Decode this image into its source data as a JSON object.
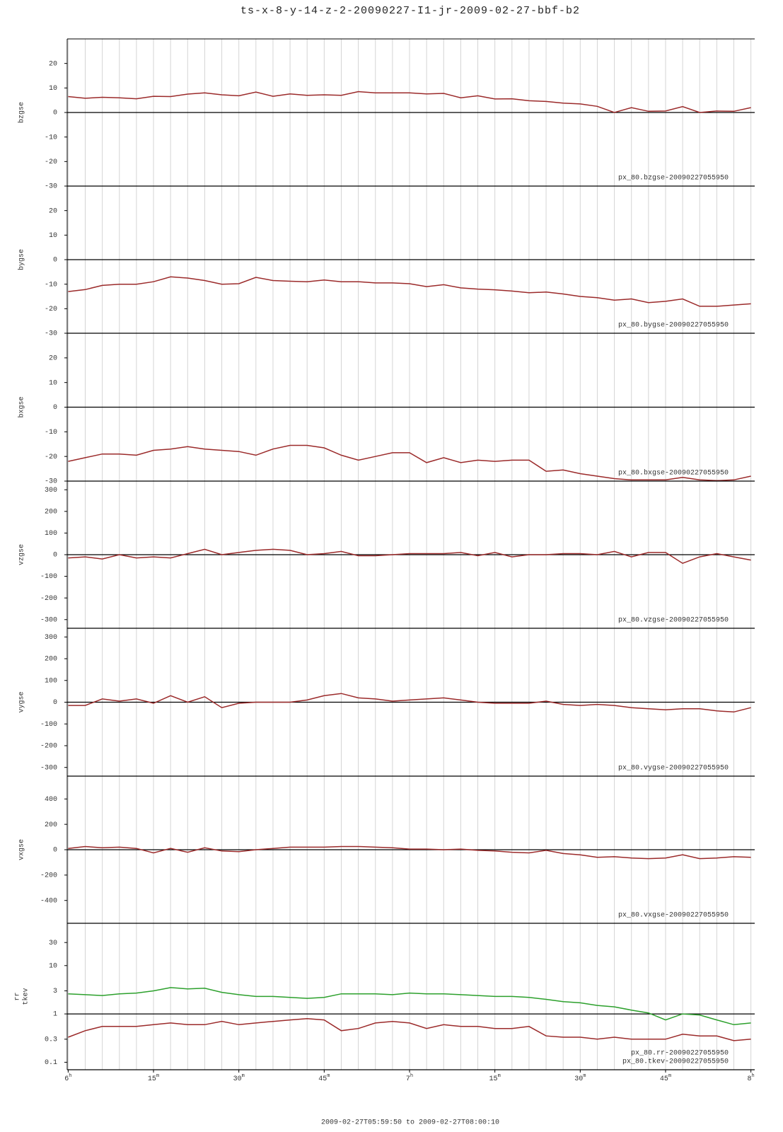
{
  "title": "ts-x-8-y-14-z-2-20090227-I1-jr-2009-02-27-bbf-b2",
  "time_range": "2009-02-27T05:59:50 to 2009-02-27T08:00:10",
  "x_axis": {
    "xlim": [
      -0.17,
      120.17
    ],
    "grid_step": 3,
    "xticks": [
      {
        "value": 0,
        "label": "6h"
      },
      {
        "value": 15,
        "label": "15m"
      },
      {
        "value": 30,
        "label": "30m"
      },
      {
        "value": 45,
        "label": "45m"
      },
      {
        "value": 60,
        "label": "7h"
      },
      {
        "value": 75,
        "label": "15m"
      },
      {
        "value": 90,
        "label": "30m"
      },
      {
        "value": 105,
        "label": "45m"
      },
      {
        "value": 120,
        "label": "8h"
      }
    ]
  },
  "chart_data": [
    {
      "type": "line",
      "ylabel": [
        "bzgse"
      ],
      "ylim": [
        -30,
        30
      ],
      "yticks": [
        -30,
        -20,
        -10,
        0,
        10,
        20
      ],
      "hline": 0,
      "x": [
        0,
        3,
        6,
        9,
        12,
        15,
        18,
        21,
        24,
        27,
        30,
        33,
        36,
        39,
        42,
        45,
        48,
        51,
        54,
        57,
        60,
        63,
        66,
        69,
        72,
        75,
        78,
        81,
        84,
        87,
        90,
        93,
        96,
        99,
        102,
        105,
        108,
        111,
        114,
        117,
        120
      ],
      "series": [
        {
          "name": "px_80.bzgse-20090227055950",
          "color": "#9b2a2a",
          "values": [
            6.5,
            5.8,
            6.2,
            6,
            5.6,
            6.6,
            6.5,
            7.5,
            8,
            7.2,
            6.8,
            8.3,
            6.6,
            7.6,
            7,
            7.2,
            7,
            8.5,
            8,
            8,
            8,
            7.6,
            7.8,
            6,
            6.8,
            5.5,
            5.6,
            4.8,
            4.5,
            3.8,
            3.5,
            2.5,
            0,
            2,
            0.5,
            0.6,
            2.4,
            0,
            0.6,
            0.5,
            2
          ]
        }
      ]
    },
    {
      "type": "line",
      "ylabel": [
        "bygse"
      ],
      "ylim": [
        -30,
        30
      ],
      "yticks": [
        -30,
        -20,
        -10,
        0,
        10,
        20
      ],
      "hline": 0,
      "x": [
        0,
        3,
        6,
        9,
        12,
        15,
        18,
        21,
        24,
        27,
        30,
        33,
        36,
        39,
        42,
        45,
        48,
        51,
        54,
        57,
        60,
        63,
        66,
        69,
        72,
        75,
        78,
        81,
        84,
        87,
        90,
        93,
        96,
        99,
        102,
        105,
        108,
        111,
        114,
        117,
        120
      ],
      "series": [
        {
          "name": "px_80.bygse-20090227055950",
          "color": "#9b2a2a",
          "values": [
            -13,
            -12.2,
            -10.5,
            -10,
            -10,
            -9,
            -7,
            -7.5,
            -8.5,
            -10,
            -9.8,
            -7.2,
            -8.5,
            -8.8,
            -9,
            -8.3,
            -9,
            -9,
            -9.5,
            -9.5,
            -9.8,
            -11,
            -10.2,
            -11.5,
            -12,
            -12.3,
            -12.8,
            -13.5,
            -13.2,
            -14,
            -15,
            -15.5,
            -16.5,
            -16,
            -17.5,
            -17,
            -16,
            -19,
            -19,
            -18.5,
            -18
          ]
        }
      ]
    },
    {
      "type": "line",
      "ylabel": [
        "bxgse"
      ],
      "ylim": [
        -30,
        30
      ],
      "yticks": [
        -30,
        -20,
        -10,
        0,
        10,
        20
      ],
      "hline": 0,
      "x": [
        0,
        3,
        6,
        9,
        12,
        15,
        18,
        21,
        24,
        27,
        30,
        33,
        36,
        39,
        42,
        45,
        48,
        51,
        54,
        57,
        60,
        63,
        66,
        69,
        72,
        75,
        78,
        81,
        84,
        87,
        90,
        93,
        96,
        99,
        102,
        105,
        108,
        111,
        114,
        117,
        120
      ],
      "series": [
        {
          "name": "px_80.bxgse-20090227055950",
          "color": "#9b2a2a",
          "values": [
            -22,
            -20.5,
            -19,
            -19,
            -19.5,
            -17.5,
            -17,
            -16,
            -17,
            -17.5,
            -18,
            -19.5,
            -17,
            -15.5,
            -15.5,
            -16.5,
            -19.5,
            -21.5,
            -20,
            -18.5,
            -18.5,
            -22.5,
            -20.5,
            -22.5,
            -21.5,
            -22,
            -21.5,
            -21.5,
            -26,
            -25.5,
            -27,
            -28,
            -29,
            -29.5,
            -29.5,
            -29.5,
            -28.5,
            -29.5,
            -29.8,
            -29.5,
            -28
          ]
        }
      ]
    },
    {
      "type": "line",
      "ylabel": [
        "vzgse"
      ],
      "ylim": [
        -340,
        340
      ],
      "yticks": [
        -300,
        -200,
        -100,
        0,
        100,
        200,
        300
      ],
      "hline": 0,
      "x": [
        0,
        3,
        6,
        9,
        12,
        15,
        18,
        21,
        24,
        27,
        30,
        33,
        36,
        39,
        42,
        45,
        48,
        51,
        54,
        57,
        60,
        63,
        66,
        69,
        72,
        75,
        78,
        81,
        84,
        87,
        90,
        93,
        96,
        99,
        102,
        105,
        108,
        111,
        114,
        117,
        120
      ],
      "series": [
        {
          "name": "px_80.vzgse-20090227055950",
          "color": "#9b2a2a",
          "values": [
            -15,
            -10,
            -20,
            0,
            -15,
            -10,
            -15,
            5,
            25,
            0,
            10,
            20,
            25,
            20,
            0,
            5,
            15,
            -5,
            -5,
            0,
            5,
            5,
            5,
            10,
            -5,
            10,
            -10,
            0,
            0,
            5,
            5,
            0,
            15,
            -10,
            10,
            10,
            -40,
            -10,
            5,
            -10,
            -25
          ]
        }
      ]
    },
    {
      "type": "line",
      "ylabel": [
        "vygse"
      ],
      "ylim": [
        -340,
        340
      ],
      "yticks": [
        -300,
        -200,
        -100,
        0,
        100,
        200,
        300
      ],
      "hline": 0,
      "x": [
        0,
        3,
        6,
        9,
        12,
        15,
        18,
        21,
        24,
        27,
        30,
        33,
        36,
        39,
        42,
        45,
        48,
        51,
        54,
        57,
        60,
        63,
        66,
        69,
        72,
        75,
        78,
        81,
        84,
        87,
        90,
        93,
        96,
        99,
        102,
        105,
        108,
        111,
        114,
        117,
        120
      ],
      "series": [
        {
          "name": "px_80.vygse-20090227055950",
          "color": "#9b2a2a",
          "values": [
            -15,
            -15,
            15,
            5,
            15,
            -5,
            30,
            0,
            25,
            -25,
            -5,
            0,
            0,
            0,
            10,
            30,
            40,
            20,
            15,
            5,
            10,
            15,
            20,
            10,
            0,
            -5,
            -5,
            -5,
            5,
            -10,
            -15,
            -10,
            -15,
            -25,
            -30,
            -35,
            -30,
            -30,
            -40,
            -45,
            -25
          ]
        }
      ]
    },
    {
      "type": "line",
      "ylabel": [
        "vxgse"
      ],
      "ylim": [
        -580,
        580
      ],
      "yticks": [
        -400,
        -200,
        0,
        200,
        400
      ],
      "hline": 0,
      "x": [
        0,
        3,
        6,
        9,
        12,
        15,
        18,
        21,
        24,
        27,
        30,
        33,
        36,
        39,
        42,
        45,
        48,
        51,
        54,
        57,
        60,
        63,
        66,
        69,
        72,
        75,
        78,
        81,
        84,
        87,
        90,
        93,
        96,
        99,
        102,
        105,
        108,
        111,
        114,
        117,
        120
      ],
      "series": [
        {
          "name": "px_80.vxgse-20090227055950",
          "color": "#9b2a2a",
          "values": [
            10,
            25,
            15,
            20,
            10,
            -25,
            10,
            -20,
            15,
            -10,
            -15,
            0,
            10,
            20,
            20,
            20,
            25,
            25,
            20,
            15,
            5,
            5,
            0,
            5,
            -5,
            -10,
            -20,
            -25,
            -5,
            -30,
            -40,
            -60,
            -55,
            -65,
            -70,
            -65,
            -40,
            -70,
            -65,
            -55,
            -60
          ]
        }
      ]
    },
    {
      "type": "line",
      "ylabel": [
        "rr",
        "tkev"
      ],
      "log": true,
      "ylim": [
        0.07,
        75
      ],
      "yticks": [
        0.1,
        0.3,
        1,
        3,
        10,
        30
      ],
      "hline": 1,
      "x": [
        0,
        3,
        6,
        9,
        12,
        15,
        18,
        21,
        24,
        27,
        30,
        33,
        36,
        39,
        42,
        45,
        48,
        51,
        54,
        57,
        60,
        63,
        66,
        69,
        72,
        75,
        78,
        81,
        84,
        87,
        90,
        93,
        96,
        99,
        102,
        105,
        108,
        111,
        114,
        117,
        120
      ],
      "series": [
        {
          "name": "px_80.rr-20090227055950",
          "color": "#2ca02c",
          "values": [
            2.6,
            2.5,
            2.4,
            2.6,
            2.7,
            3.0,
            3.5,
            3.3,
            3.4,
            2.8,
            2.5,
            2.3,
            2.3,
            2.2,
            2.1,
            2.2,
            2.6,
            2.6,
            2.6,
            2.5,
            2.7,
            2.6,
            2.6,
            2.5,
            2.4,
            2.3,
            2.3,
            2.2,
            2.0,
            1.8,
            1.7,
            1.5,
            1.4,
            1.2,
            1.05,
            0.75,
            1.0,
            0.95,
            0.75,
            0.6,
            0.65
          ]
        },
        {
          "name": "px_80.tkev-20090227055950",
          "color": "#9b2a2a",
          "values": [
            0.33,
            0.45,
            0.55,
            0.55,
            0.55,
            0.6,
            0.65,
            0.6,
            0.6,
            0.7,
            0.6,
            0.65,
            0.7,
            0.75,
            0.8,
            0.75,
            0.45,
            0.5,
            0.65,
            0.7,
            0.65,
            0.5,
            0.6,
            0.55,
            0.55,
            0.5,
            0.5,
            0.55,
            0.35,
            0.33,
            0.33,
            0.3,
            0.33,
            0.3,
            0.3,
            0.3,
            0.38,
            0.35,
            0.35,
            0.28,
            0.3
          ]
        }
      ]
    }
  ]
}
